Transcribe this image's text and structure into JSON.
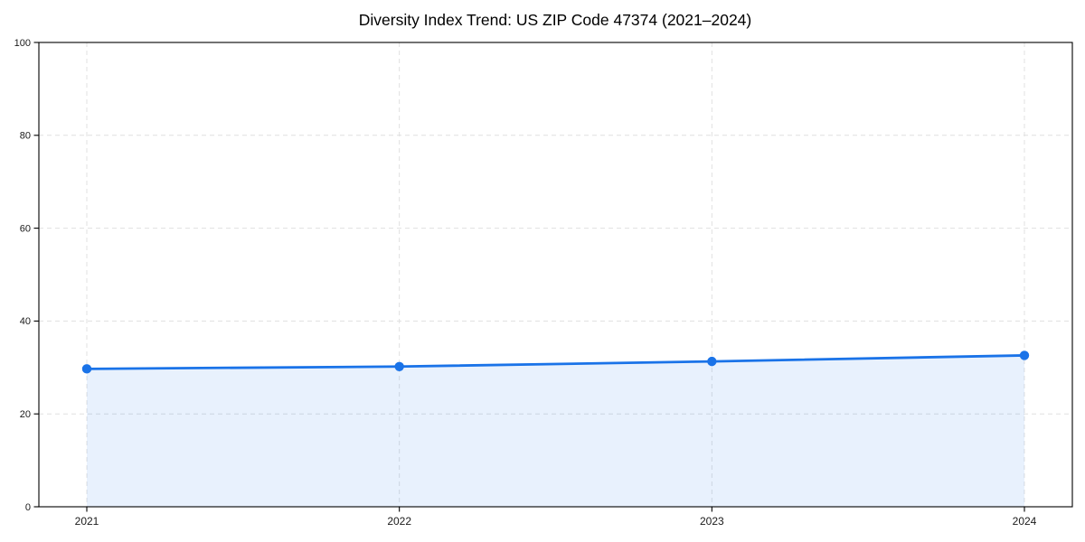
{
  "chart_data": {
    "type": "area",
    "title": "Diversity Index Trend: US ZIP Code 47374 (2021–2024)",
    "categories": [
      "2021",
      "2022",
      "2023",
      "2024"
    ],
    "series": [
      {
        "name": "Diversity Index",
        "values": [
          29.7,
          30.2,
          31.3,
          32.6
        ]
      }
    ],
    "xlabel": "",
    "ylabel": "",
    "ylim": [
      0,
      100
    ],
    "yticks": [
      0,
      20,
      40,
      60,
      80,
      100
    ],
    "grid": true,
    "grid_style": "dashed",
    "legend": false,
    "colors": {
      "line": "#1a73e8",
      "marker": "#1a73e8",
      "fill": "rgba(26,115,232,0.10)",
      "grid": "#e0e0e0",
      "axis": "#000000",
      "tick_label": "#1a1a1a",
      "background": "#ffffff"
    }
  }
}
